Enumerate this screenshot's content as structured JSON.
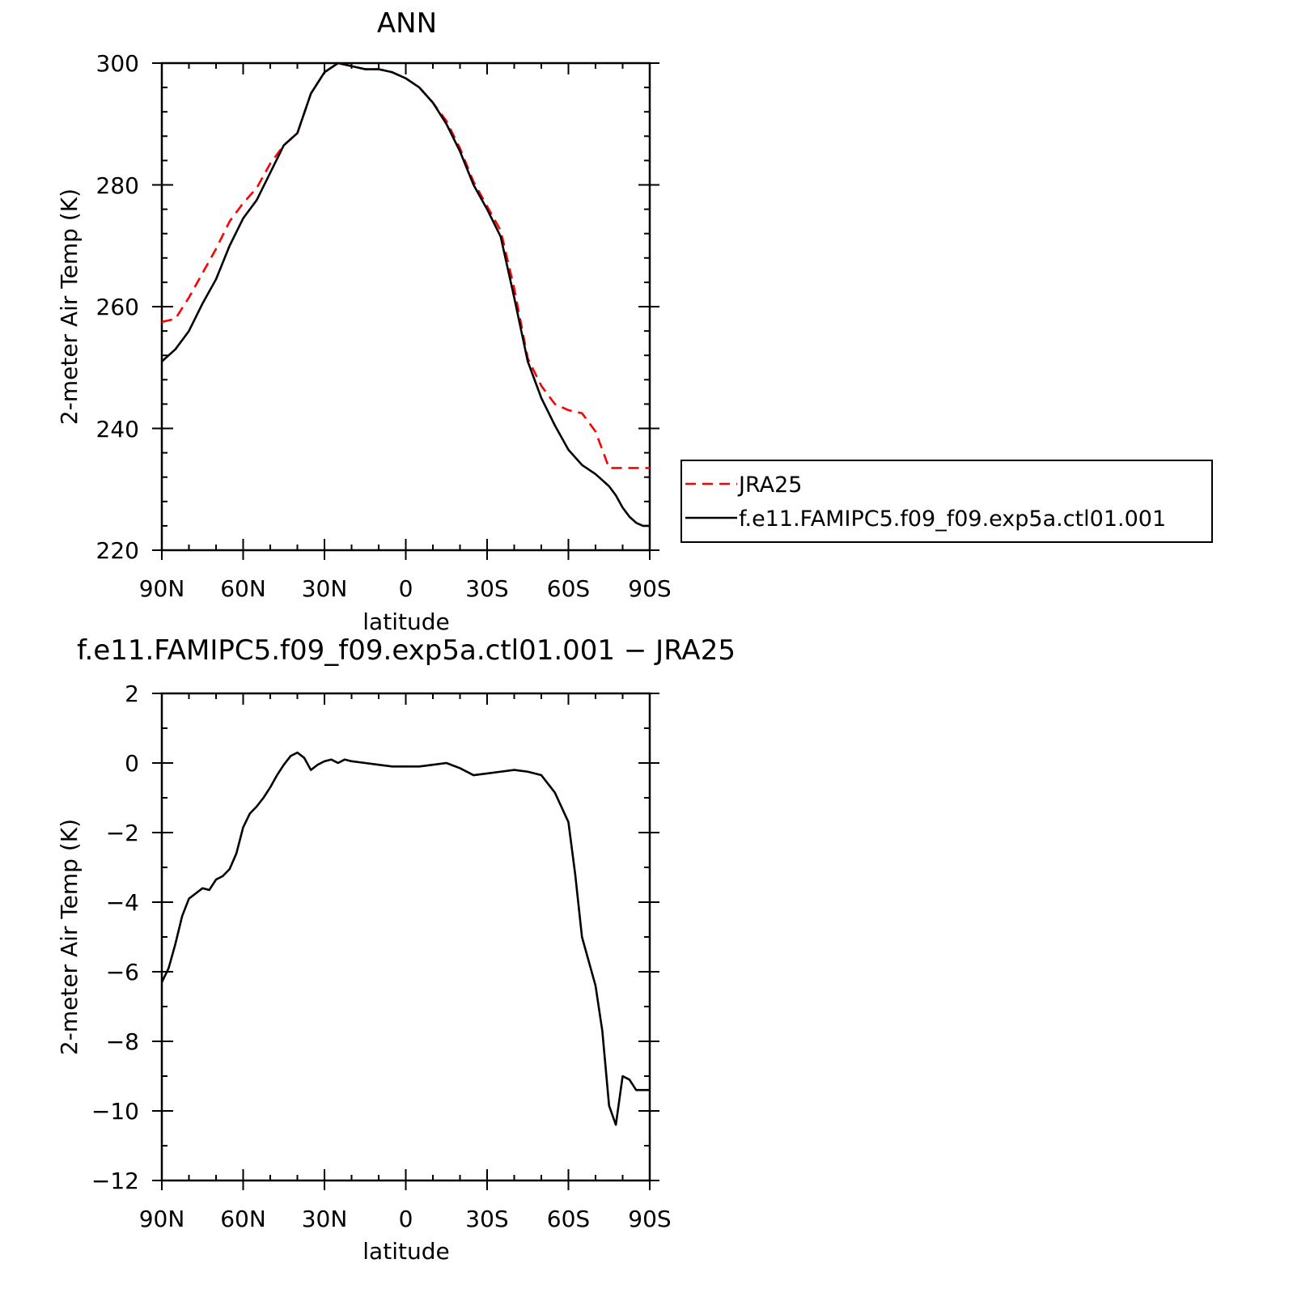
{
  "chart_data": [
    {
      "type": "line",
      "title": "ANN",
      "xlabel": "latitude",
      "ylabel": "2-meter Air Temp (K)",
      "xlim": [
        90,
        -90
      ],
      "ylim": [
        220,
        300
      ],
      "x_tick_values": [
        90,
        60,
        30,
        0,
        -30,
        -60,
        -90
      ],
      "x_tick_labels": [
        "90N",
        "60N",
        "30N",
        "0",
        "30S",
        "60S",
        "90S"
      ],
      "y_tick_labels": [
        "220",
        "240",
        "260",
        "280",
        "300"
      ],
      "legend_position": "right",
      "grid": false,
      "series": [
        {
          "name": "JRA25",
          "color": "#ff0000",
          "dash": "dashed",
          "x": [
            90,
            85,
            80,
            75,
            70,
            65,
            60,
            55,
            50,
            45,
            40,
            35,
            30,
            25,
            20,
            15,
            10,
            5,
            0,
            -5,
            -10,
            -15,
            -20,
            -25,
            -30,
            -35,
            -40,
            -45,
            -50,
            -55,
            -60,
            -65,
            -70,
            -75,
            -77.5,
            -80,
            -82.5,
            -85,
            -87.5,
            -90
          ],
          "y": [
            257.5,
            258.0,
            261.5,
            265.5,
            269.5,
            274.0,
            277.0,
            279.5,
            283.5,
            286.5,
            288.5,
            295.0,
            298.5,
            300.0,
            299.5,
            299.0,
            299.0,
            298.5,
            297.5,
            296.0,
            293.5,
            290.5,
            286.0,
            280.5,
            276.5,
            272.5,
            263.0,
            251.5,
            247.0,
            244.0,
            243.0,
            242.5,
            239.5,
            233.5,
            233.5,
            233.5,
            233.5,
            233.5,
            233.5,
            233.5
          ]
        },
        {
          "name": "f.e11.FAMIPC5.f09_f09.exp5a.ctl01.001",
          "color": "#000000",
          "dash": "solid",
          "x": [
            90,
            85,
            80,
            75,
            70,
            65,
            60,
            55,
            50,
            45,
            40,
            35,
            30,
            25,
            20,
            15,
            10,
            5,
            0,
            -5,
            -10,
            -15,
            -20,
            -25,
            -30,
            -35,
            -40,
            -45,
            -50,
            -55,
            -60,
            -65,
            -70,
            -72.5,
            -75,
            -77.5,
            -80,
            -82.5,
            -85,
            -87.5,
            -90
          ],
          "y": [
            251.0,
            253.0,
            256.0,
            260.5,
            264.5,
            270.0,
            274.5,
            277.5,
            282.0,
            286.5,
            288.5,
            295.0,
            298.5,
            300.0,
            299.5,
            299.0,
            299.0,
            298.5,
            297.5,
            296.0,
            293.5,
            290.0,
            285.5,
            280.0,
            276.0,
            271.5,
            261.5,
            251.0,
            245.0,
            240.5,
            236.5,
            234.0,
            232.5,
            231.5,
            230.5,
            229.0,
            227.0,
            225.5,
            224.5,
            224.0,
            224.0
          ]
        }
      ]
    },
    {
      "type": "line",
      "title": "f.e11.FAMIPC5.f09_f09.exp5a.ctl01.001 − JRA25",
      "xlabel": "latitude",
      "ylabel": "2-meter Air Temp (K)",
      "xlim": [
        90,
        -90
      ],
      "ylim": [
        -12,
        2
      ],
      "x_tick_values": [
        90,
        60,
        30,
        0,
        -30,
        -60,
        -90
      ],
      "x_tick_labels": [
        "90N",
        "60N",
        "30N",
        "0",
        "30S",
        "60S",
        "90S"
      ],
      "y_tick_labels": [
        "2",
        "0",
        "−2",
        "−4",
        "−6",
        "−8",
        "−10",
        "−12"
      ],
      "grid": false,
      "series": [
        {
          "color": "#000000",
          "dash": "solid",
          "x": [
            90,
            87.5,
            85,
            82.5,
            80,
            77.5,
            75,
            72.5,
            70,
            67.5,
            65,
            62.5,
            60,
            57.5,
            55,
            52.5,
            50,
            47.5,
            45,
            42.5,
            40,
            37.5,
            35,
            32.5,
            30,
            27.5,
            25,
            22.5,
            20,
            15,
            10,
            5,
            0,
            -5,
            -10,
            -15,
            -20,
            -25,
            -30,
            -35,
            -40,
            -45,
            -50,
            -55,
            -60,
            -62.5,
            -65,
            -67.5,
            -70,
            -72.5,
            -75,
            -77.5,
            -80,
            -82.5,
            -85,
            -87.5,
            -90
          ],
          "y": [
            -6.3,
            -5.9,
            -5.2,
            -4.4,
            -3.9,
            -3.75,
            -3.6,
            -3.65,
            -3.35,
            -3.25,
            -3.05,
            -2.6,
            -1.85,
            -1.45,
            -1.25,
            -1.0,
            -0.7,
            -0.35,
            -0.05,
            0.2,
            0.3,
            0.15,
            -0.2,
            -0.05,
            0.05,
            0.1,
            0.0,
            0.1,
            0.05,
            0.0,
            -0.05,
            -0.1,
            -0.1,
            -0.1,
            -0.05,
            0.0,
            -0.15,
            -0.35,
            -0.3,
            -0.25,
            -0.2,
            -0.25,
            -0.35,
            -0.85,
            -1.7,
            -3.2,
            -5.0,
            -5.7,
            -6.4,
            -7.7,
            -9.85,
            -10.4,
            -9.0,
            -9.1,
            -9.4,
            -9.4,
            -9.4
          ]
        }
      ]
    }
  ]
}
